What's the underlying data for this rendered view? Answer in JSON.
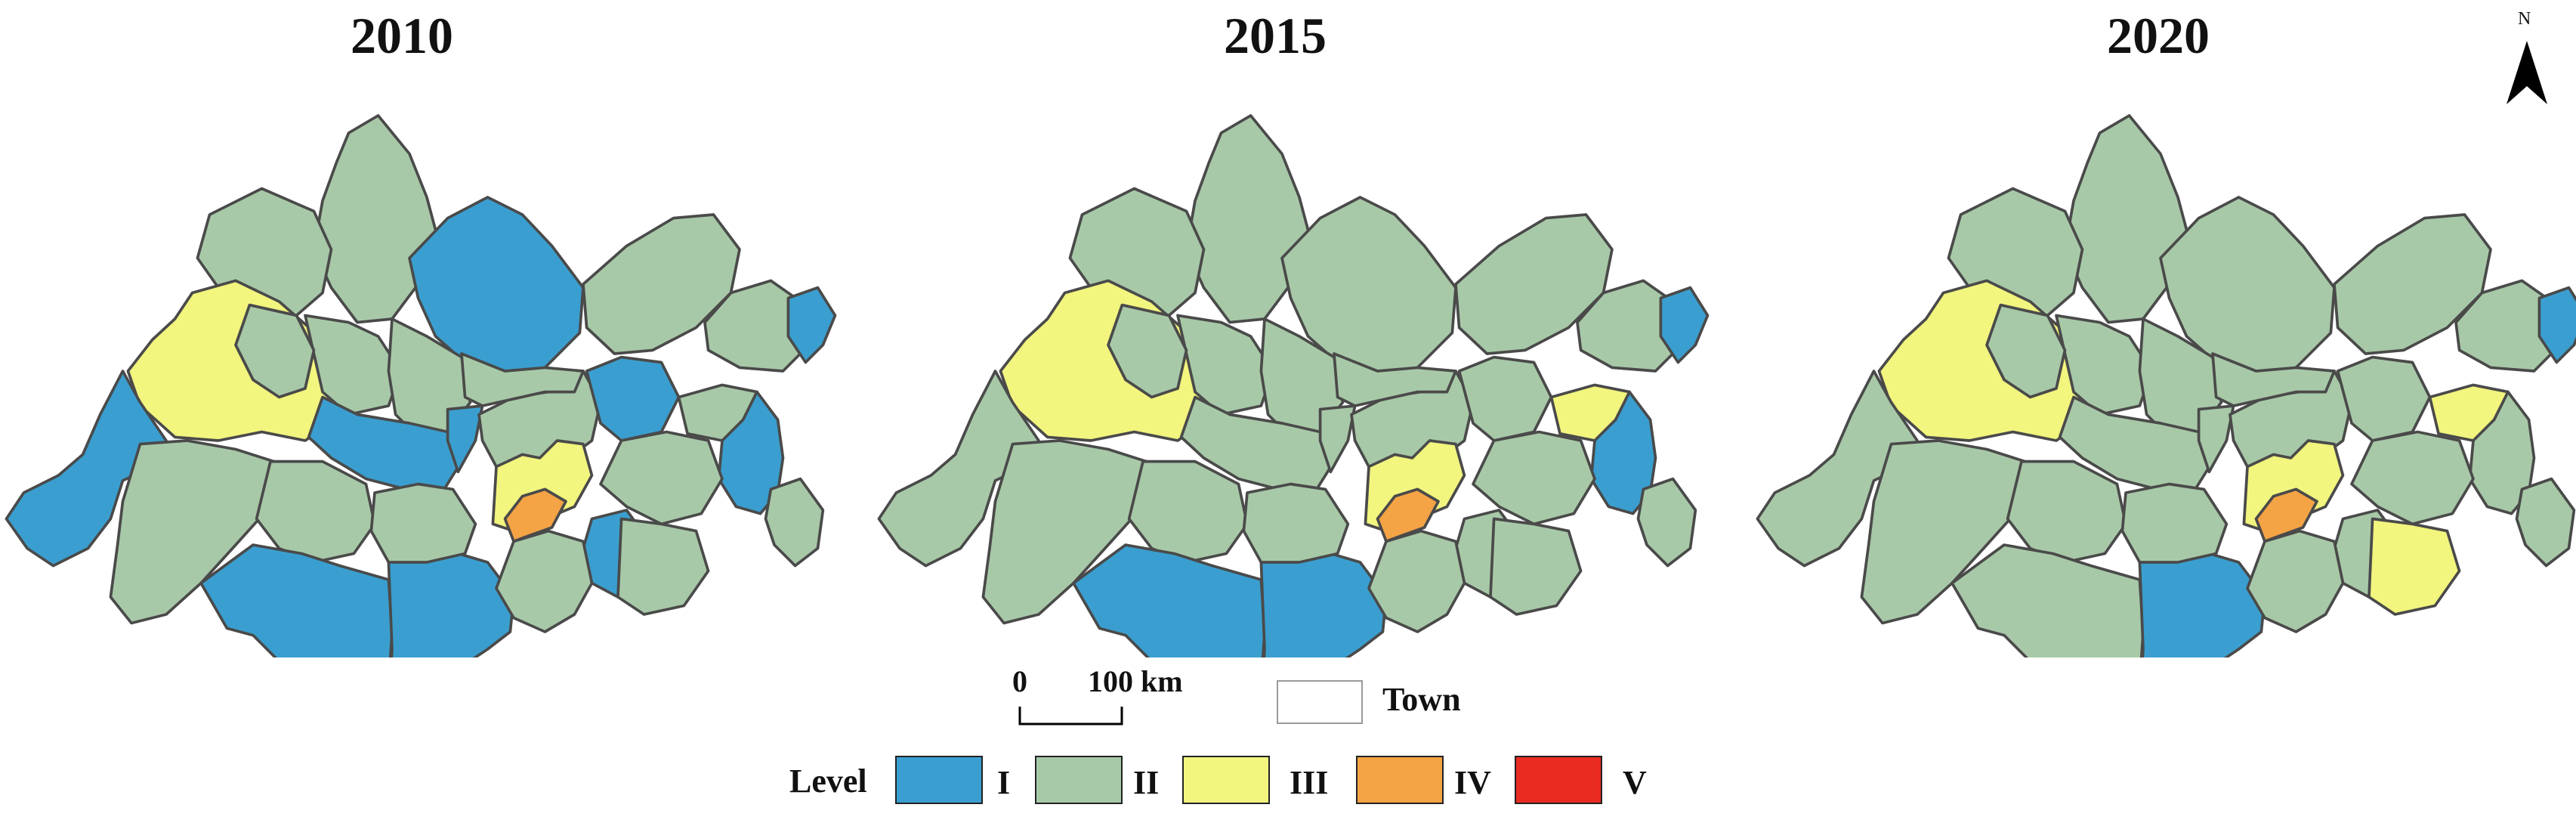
{
  "panels": [
    {
      "year": "2010",
      "levels": [
        "II",
        "II",
        "I",
        "II",
        "III",
        "I",
        "II",
        "II",
        "I",
        "I",
        "II",
        "II",
        "I",
        "I",
        "II",
        "I",
        "II",
        "III",
        "IV",
        "II",
        "I",
        "I",
        "II",
        "II",
        "II",
        "II",
        "II",
        "II",
        "I",
        "II"
      ]
    },
    {
      "year": "2015",
      "levels": [
        "II",
        "II",
        "II",
        "II",
        "III",
        "II",
        "II",
        "II",
        "II",
        "II",
        "II",
        "II",
        "I",
        "I",
        "II",
        "II",
        "II",
        "III",
        "IV",
        "II",
        "II",
        "I",
        "II",
        "II",
        "II",
        "II",
        "III",
        "II",
        "I",
        "II"
      ]
    },
    {
      "year": "2020",
      "levels": [
        "II",
        "II",
        "II",
        "II",
        "III",
        "II",
        "II",
        "II",
        "II",
        "II",
        "II",
        "II",
        "II",
        "I",
        "II",
        "II",
        "II",
        "III",
        "IV",
        "II",
        "II",
        "II",
        "II",
        "II",
        "II",
        "III",
        "III",
        "II",
        "I",
        "II"
      ]
    }
  ],
  "north_arrow": {
    "label": "N"
  },
  "scale_bar": {
    "zero": "0",
    "max": "100",
    "unit": "km"
  },
  "town_legend": {
    "label": "Town"
  },
  "legend": {
    "title": "Level",
    "items": [
      {
        "key": "I",
        "label": "I",
        "color": "#3a9fd0"
      },
      {
        "key": "II",
        "label": "II",
        "color": "#a8c9a8"
      },
      {
        "key": "III",
        "label": "III",
        "color": "#f2f57e"
      },
      {
        "key": "IV",
        "label": "IV",
        "color": "#f4a345"
      },
      {
        "key": "V",
        "label": "V",
        "color": "#ea2b22"
      }
    ]
  }
}
